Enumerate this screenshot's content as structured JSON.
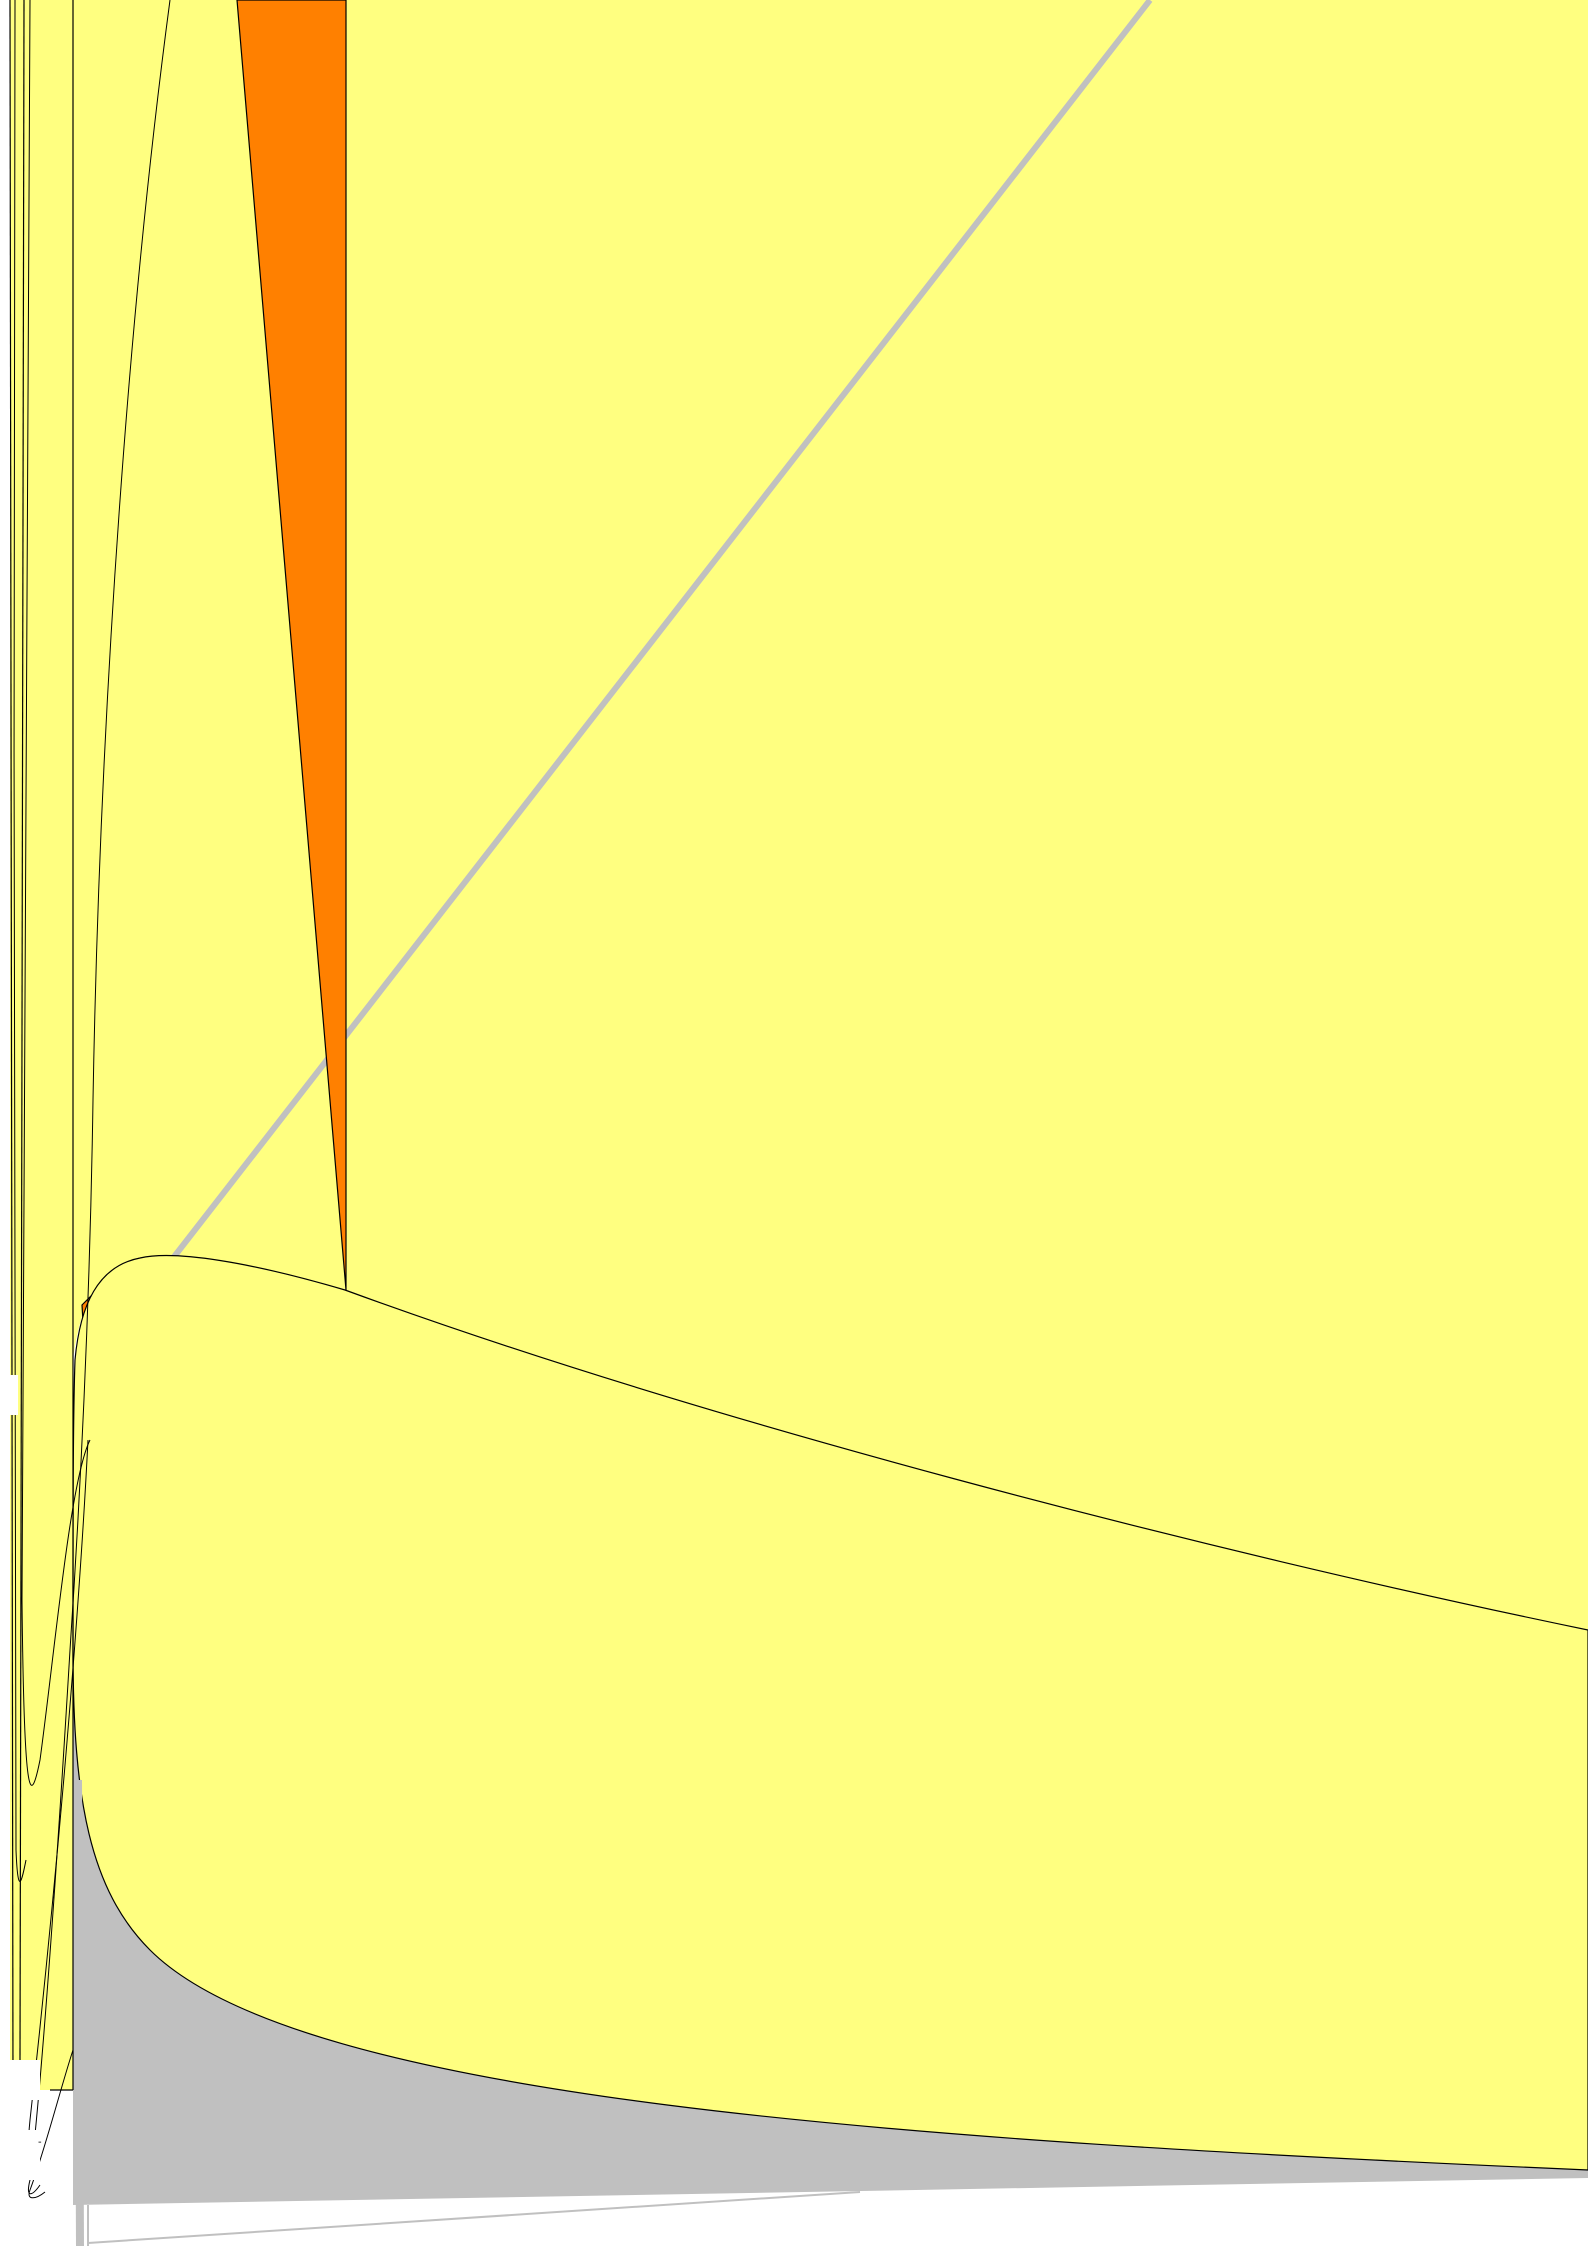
{
  "colors": {
    "background": "#ffffff",
    "yellow_fill": "#ffff80",
    "orange_fill": "#ff8000",
    "gray_fill": "#c0c0c0",
    "gray_line": "#c0c0c0",
    "outline": "#000000"
  },
  "labels": {
    "small_dash": "-"
  }
}
